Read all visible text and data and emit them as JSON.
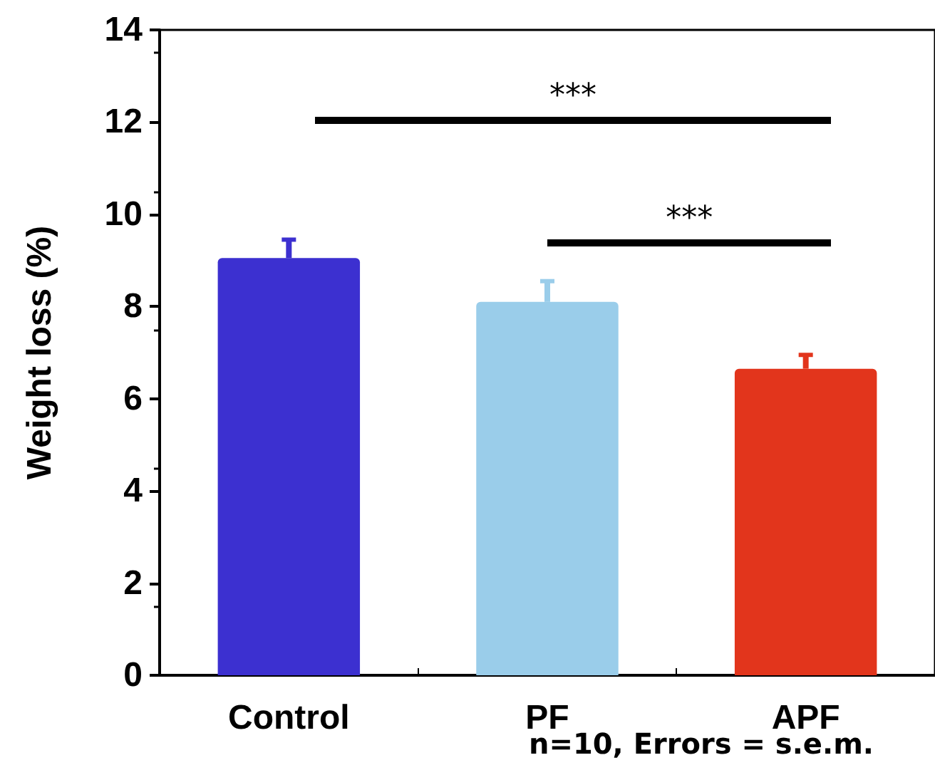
{
  "chart_data": {
    "type": "bar",
    "ylabel": "Weight loss (%)",
    "categories": [
      "Control",
      "PF",
      "APF"
    ],
    "values": [
      9.05,
      8.1,
      6.65
    ],
    "colors": [
      "#3c30d0",
      "#9acdea",
      "#e2351c"
    ],
    "errors": [
      0.4,
      0.45,
      0.3
    ],
    "ylim": [
      0,
      14
    ],
    "yticks": [
      0,
      2,
      4,
      6,
      8,
      10,
      12,
      14
    ],
    "grid": false,
    "annotations": [
      "***",
      "***",
      "n=10, Errors = s.e.m."
    ]
  }
}
